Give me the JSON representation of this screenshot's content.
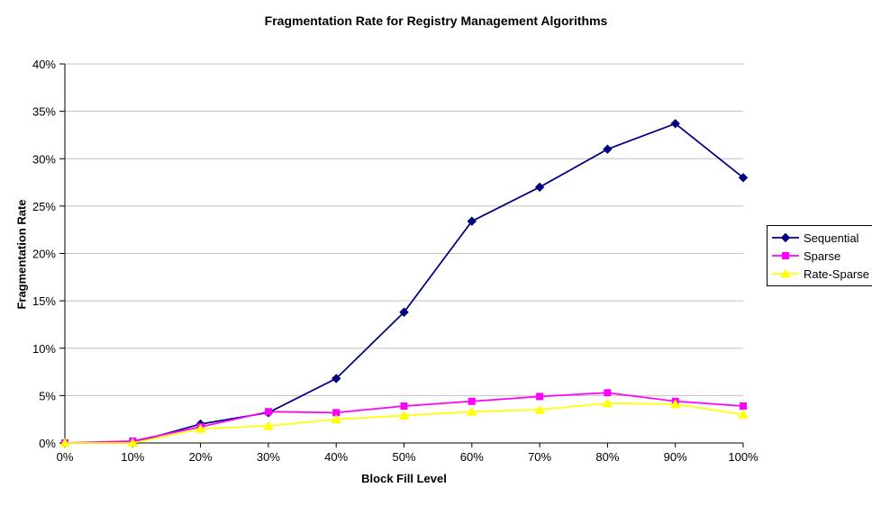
{
  "chart_data": {
    "type": "line",
    "title": "Fragmentation Rate for Registry Management Algorithms",
    "xlabel": "Block Fill Level",
    "ylabel": "Fragmentation Rate",
    "categories": [
      "0%",
      "10%",
      "20%",
      "30%",
      "40%",
      "50%",
      "60%",
      "70%",
      "80%",
      "90%",
      "100%"
    ],
    "x_values": [
      0,
      10,
      20,
      30,
      40,
      50,
      60,
      70,
      80,
      90,
      100
    ],
    "xlim": [
      0,
      100
    ],
    "ylim": [
      0,
      40
    ],
    "y_ticks": [
      "0%",
      "5%",
      "10%",
      "15%",
      "20%",
      "25%",
      "30%",
      "35%",
      "40%"
    ],
    "y_tick_values": [
      0,
      5,
      10,
      15,
      20,
      25,
      30,
      35,
      40
    ],
    "grid": "horizontal",
    "gridline_color": "#C0C0C0",
    "axis_color": "#000000",
    "background_color": "#FFFFFF",
    "legend_position": "right",
    "series": [
      {
        "name": "Sequential",
        "color": "#000080",
        "marker": "diamond",
        "values": [
          0,
          0,
          2.0,
          3.2,
          6.8,
          13.8,
          23.4,
          27.0,
          31.0,
          33.7,
          28.0
        ]
      },
      {
        "name": "Sparse",
        "color": "#FF00FF",
        "marker": "square",
        "values": [
          0,
          0.2,
          1.7,
          3.3,
          3.2,
          3.9,
          4.4,
          4.9,
          5.3,
          4.4,
          3.9
        ]
      },
      {
        "name": "Rate-Sparse",
        "color": "#FFFF00",
        "marker": "triangle",
        "values": [
          0,
          0,
          1.5,
          1.8,
          2.5,
          2.9,
          3.3,
          3.5,
          4.2,
          4.1,
          3.0
        ]
      }
    ]
  }
}
